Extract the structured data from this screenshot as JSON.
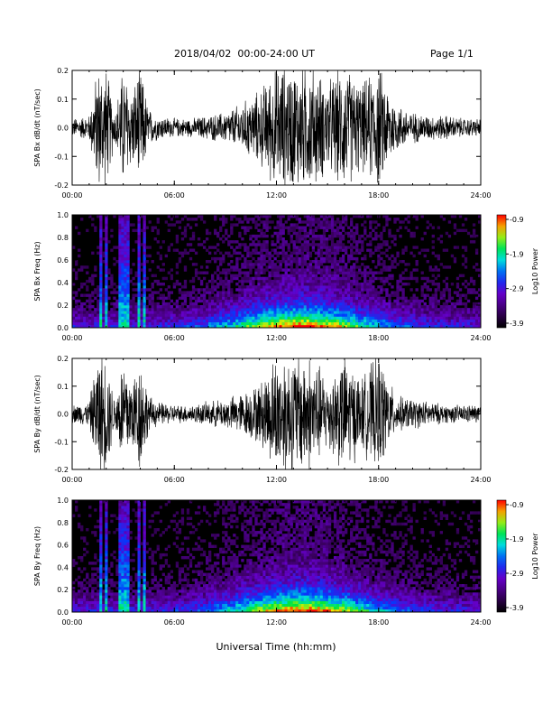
{
  "header": {
    "title": "2018/04/02  00:00-24:00 UT",
    "page": "Page 1/1"
  },
  "x_axis_label": "Universal Time (hh:mm)",
  "chart_data": [
    {
      "type": "line",
      "name": "panel-bx-waveform",
      "ylabel": "SPA Bx dB/dt (nT/sec)",
      "xlim": [
        0,
        24
      ],
      "ylim": [
        -0.2,
        0.2
      ],
      "x_ticks": [
        "00:00",
        "06:00",
        "12:00",
        "18:00",
        "24:00"
      ],
      "y_ticks": [
        "-0.2",
        "-0.1",
        "0.0",
        "0.1",
        "0.2"
      ],
      "series": [
        {
          "x_hours": [
            0,
            1,
            1.5,
            2,
            2.5,
            3,
            3.5,
            4,
            4.5,
            5,
            6,
            7,
            8,
            9,
            10,
            11,
            12,
            13,
            14,
            15,
            16,
            17,
            18,
            19,
            20,
            21,
            22,
            23,
            24
          ],
          "amplitude": [
            0.03,
            0.04,
            0.2,
            0.2,
            0.05,
            0.2,
            0.12,
            0.2,
            0.06,
            0.04,
            0.03,
            0.03,
            0.04,
            0.05,
            0.08,
            0.12,
            0.2,
            0.2,
            0.2,
            0.15,
            0.2,
            0.14,
            0.2,
            0.08,
            0.05,
            0.04,
            0.04,
            0.03,
            0.03
          ]
        }
      ]
    },
    {
      "type": "heatmap",
      "name": "panel-bx-spectrogram",
      "ylabel": "SPA Bx Freq (Hz)",
      "xlim": [
        0,
        24
      ],
      "ylim": [
        0.0,
        1.0
      ],
      "x_ticks": [
        "00:00",
        "06:00",
        "12:00",
        "18:00",
        "24:00"
      ],
      "y_ticks": [
        "0.0",
        "0.2",
        "0.4",
        "0.6",
        "0.8",
        "1.0"
      ],
      "colorbar": {
        "label": "Log10 Power",
        "ticks": [
          "-0.9",
          "-1.9",
          "-2.9",
          "-3.9"
        ],
        "range": [
          -3.9,
          -0.9
        ]
      },
      "bright_columns_hours": [
        1.7,
        2.0,
        2.9,
        3.2,
        3.9,
        4.2
      ]
    },
    {
      "type": "line",
      "name": "panel-by-waveform",
      "ylabel": "SPA By dB/dt (nT/sec)",
      "xlim": [
        0,
        24
      ],
      "ylim": [
        -0.2,
        0.2
      ],
      "x_ticks": [
        "00:00",
        "06:00",
        "12:00",
        "18:00",
        "24:00"
      ],
      "y_ticks": [
        "-0.2",
        "-0.1",
        "0.0",
        "0.1",
        "0.2"
      ],
      "series": [
        {
          "x_hours": [
            0,
            1,
            1.5,
            2,
            2.5,
            3,
            3.5,
            4,
            4.5,
            5,
            6,
            7,
            8,
            9,
            10,
            11,
            12,
            13,
            14,
            15,
            16,
            17,
            18,
            19,
            20,
            21,
            22,
            23,
            24
          ],
          "amplitude": [
            0.03,
            0.04,
            0.2,
            0.2,
            0.05,
            0.2,
            0.12,
            0.2,
            0.06,
            0.04,
            0.03,
            0.03,
            0.04,
            0.05,
            0.07,
            0.1,
            0.2,
            0.2,
            0.2,
            0.12,
            0.2,
            0.12,
            0.2,
            0.06,
            0.05,
            0.04,
            0.03,
            0.03,
            0.03
          ]
        }
      ]
    },
    {
      "type": "heatmap",
      "name": "panel-by-spectrogram",
      "ylabel": "SPA By Freq (Hz)",
      "xlim": [
        0,
        24
      ],
      "ylim": [
        0.0,
        1.0
      ],
      "x_ticks": [
        "00:00",
        "06:00",
        "12:00",
        "18:00",
        "24:00"
      ],
      "y_ticks": [
        "0.0",
        "0.2",
        "0.4",
        "0.6",
        "0.8",
        "1.0"
      ],
      "colorbar": {
        "label": "Log10 Power",
        "ticks": [
          "-0.9",
          "-1.9",
          "-2.9",
          "-3.9"
        ],
        "range": [
          -3.9,
          -0.9
        ]
      },
      "bright_columns_hours": [
        1.7,
        2.0,
        2.9,
        3.2,
        3.9,
        4.2
      ]
    }
  ]
}
